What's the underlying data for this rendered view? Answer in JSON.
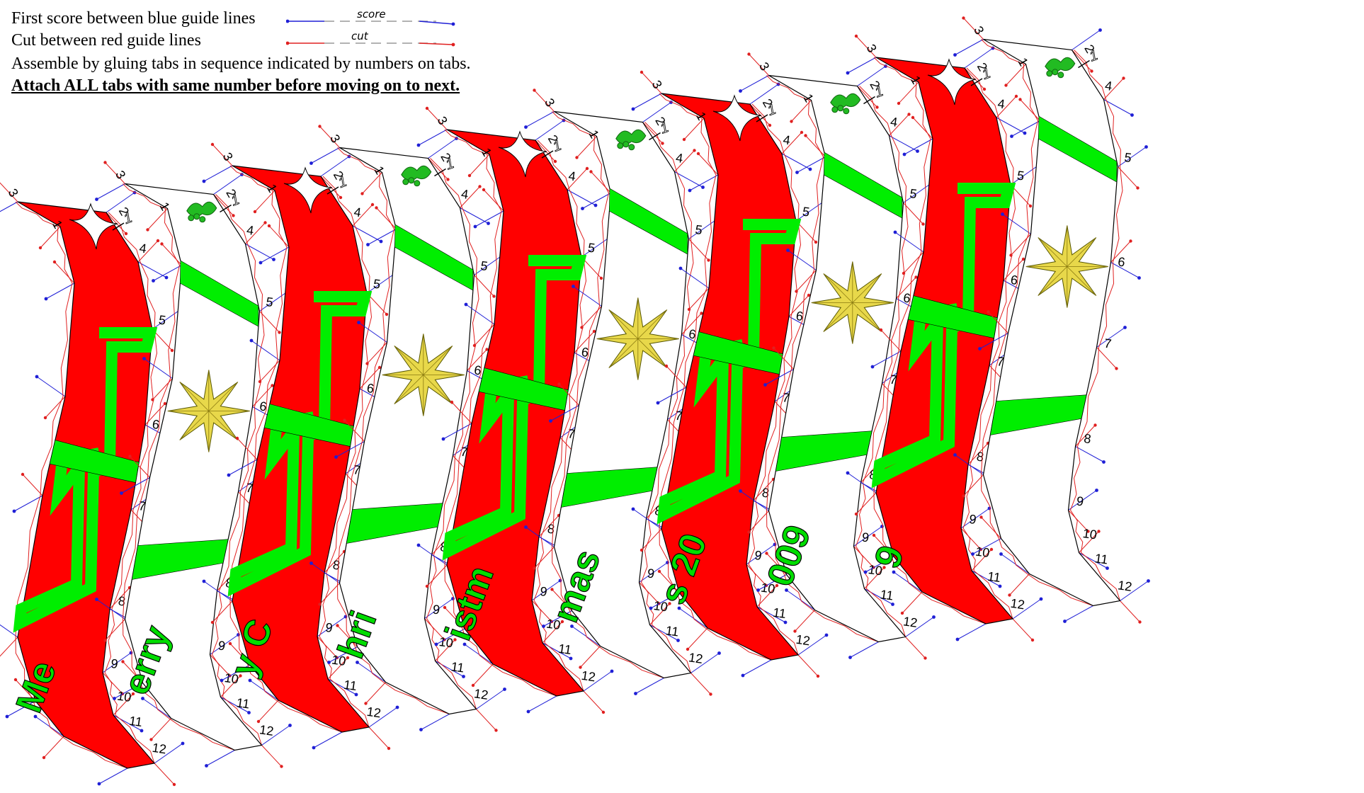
{
  "instructions": {
    "score_line": "First score between blue guide lines",
    "cut_line": "Cut between red guide lines",
    "assemble_line": "Assemble by gluing tabs in sequence indicated by numbers on tabs.",
    "attach_line": "Attach ALL tabs with same number before moving on to next.",
    "score_sample_label": "score",
    "cut_sample_label": "cut"
  },
  "colors": {
    "score_guide": "#1f1fd6",
    "cut_guide": "#e02020",
    "red_panel": "#ff0000",
    "ribbon": "#00ee00",
    "lettering": "#00dd00",
    "star": "#e8d84a",
    "holly": "#22bb22",
    "outline": "#000000"
  },
  "strips": [
    {
      "id": "strip-1",
      "style": "red",
      "lettering": "Me"
    },
    {
      "id": "strip-2",
      "style": "white",
      "lettering": "erry"
    },
    {
      "id": "strip-3",
      "style": "red",
      "lettering": "y C"
    },
    {
      "id": "strip-4",
      "style": "white",
      "lettering": "hri"
    },
    {
      "id": "strip-5",
      "style": "red",
      "lettering": "istm"
    },
    {
      "id": "strip-6",
      "style": "white",
      "lettering": "mas"
    },
    {
      "id": "strip-7",
      "style": "red",
      "lettering": "s 20"
    },
    {
      "id": "strip-8",
      "style": "white",
      "lettering": "009"
    },
    {
      "id": "strip-9",
      "style": "red",
      "lettering": "9"
    },
    {
      "id": "strip-10",
      "style": "white",
      "lettering": ""
    }
  ],
  "tab_numbers": [
    "1",
    "2",
    "3",
    "4",
    "5",
    "6",
    "7",
    "8",
    "9",
    "10",
    "11",
    "12"
  ],
  "glue_start_marker": "1"
}
